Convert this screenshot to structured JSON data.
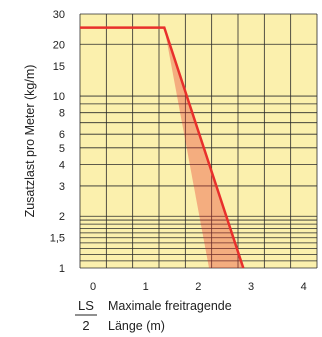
{
  "chart_data": {
    "type": "line",
    "ylabel": "Zusatzlast pro Meter (kg/m)",
    "xlabel_line1": "Maximale freitragende",
    "xlabel_line2": "Länge (m)",
    "ls_top": "LS",
    "ls_bottom": "2",
    "x_ticks": [
      "0",
      "1",
      "2",
      "3",
      "4"
    ],
    "y_ticks": [
      {
        "value": 1,
        "label": "1"
      },
      {
        "value": 1.5,
        "label": "1,5"
      },
      {
        "value": 2,
        "label": "2"
      },
      {
        "value": 3,
        "label": "3"
      },
      {
        "value": 4,
        "label": "4"
      },
      {
        "value": 5,
        "label": "5"
      },
      {
        "value": 6,
        "label": "6"
      },
      {
        "value": 8,
        "label": "8"
      },
      {
        "value": 10,
        "label": "10"
      },
      {
        "value": 15,
        "label": "15"
      },
      {
        "value": 20,
        "label": "20"
      },
      {
        "value": 30,
        "label": "30"
      }
    ],
    "y_gridlines": [
      1,
      1.1,
      1.2,
      1.3,
      1.4,
      1.5,
      1.6,
      1.7,
      1.8,
      1.9,
      2,
      3,
      4,
      5,
      6,
      7,
      8,
      9,
      10,
      20,
      30
    ],
    "xlim": [
      0,
      4.5
    ],
    "ylim": [
      1,
      30
    ],
    "y_scale": "log",
    "grid": true,
    "series": [
      {
        "points": [
          {
            "x": 0,
            "y": 25
          },
          {
            "x": 1.6,
            "y": 25
          },
          {
            "x": 3.1,
            "y": 1
          }
        ],
        "color": "#e8302c"
      }
    ],
    "shaded_band": [
      {
        "x": 1.6,
        "y": 25
      },
      {
        "x": 2.45,
        "y": 1
      },
      {
        "x": 3.1,
        "y": 1
      }
    ],
    "colors": {
      "plot_background": "#fbf0ad",
      "grid": "#2a2a2a",
      "line": "#e8302c",
      "band": "#e8302c"
    }
  }
}
